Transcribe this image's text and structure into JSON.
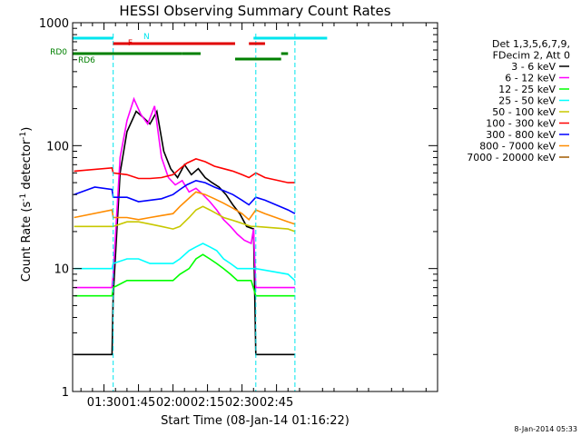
{
  "chart_data": {
    "type": "line",
    "title": "HESSI Observing Summary Count Rates",
    "xlabel": "Start Time (08-Jan-14 01:16:22)",
    "ylabel_main": "Count Rate (s",
    "ylabel_sup": "-1",
    "ylabel_mid": " detector",
    "ylabel_end": ")",
    "yscale": "log",
    "ylim": [
      1,
      1000
    ],
    "xlim_minutes": [
      16.37,
      175
    ],
    "x_ticks": [
      {
        "m": 30,
        "label": "01:30"
      },
      {
        "m": 45,
        "label": "01:45"
      },
      {
        "m": 60,
        "label": "02:00"
      },
      {
        "m": 75,
        "label": "02:15"
      },
      {
        "m": 90,
        "label": "02:30"
      },
      {
        "m": 105,
        "label": "02:45"
      }
    ],
    "y_ticks": [
      {
        "v": 1,
        "label": "1"
      },
      {
        "v": 10,
        "label": "10"
      },
      {
        "v": 100,
        "label": "100"
      },
      {
        "v": 1000,
        "label": "1000"
      }
    ],
    "legend": {
      "header": [
        "Det 1,3,5,6,7,9,",
        "FDecim 2, Att 0"
      ],
      "placement": "right"
    },
    "timestamp": "8-Jan-2014 05:33",
    "flag_labels": {
      "n": "N",
      "f": "F",
      "rd0": "RD0",
      "rd6": "RD6"
    },
    "flags": [
      {
        "name": "N",
        "color": "#00e5ee",
        "segments": [
          [
            16.4,
            34
          ],
          [
            95,
            127
          ]
        ]
      },
      {
        "name": "F",
        "color": "#e00000",
        "segments": [
          [
            34,
            87
          ],
          [
            93,
            100
          ]
        ]
      },
      {
        "name": "RD0",
        "color": "#008000",
        "segments": [
          [
            16.4,
            64
          ],
          [
            64,
            72
          ],
          [
            87,
            107
          ],
          [
            107,
            110
          ]
        ]
      }
    ],
    "saa_boundaries": [
      34,
      96,
      113
    ],
    "series": [
      {
        "name": "3 - 6 keV",
        "color": "#000000",
        "points": [
          [
            17,
            2
          ],
          [
            33.5,
            2
          ],
          [
            34,
            6
          ],
          [
            37,
            60
          ],
          [
            40,
            130
          ],
          [
            44,
            190
          ],
          [
            47,
            170
          ],
          [
            50,
            150
          ],
          [
            53,
            190
          ],
          [
            56,
            90
          ],
          [
            59,
            65
          ],
          [
            62,
            55
          ],
          [
            65,
            70
          ],
          [
            68,
            58
          ],
          [
            71,
            65
          ],
          [
            74,
            55
          ],
          [
            77,
            50
          ],
          [
            80,
            46
          ],
          [
            83,
            40
          ],
          [
            86,
            33
          ],
          [
            89,
            28
          ],
          [
            92,
            22
          ],
          [
            95,
            21
          ],
          [
            96,
            2
          ],
          [
            113,
            2
          ]
        ]
      },
      {
        "name": "6 - 12 keV",
        "color": "#ff00ff",
        "points": [
          [
            17,
            7
          ],
          [
            33.5,
            7
          ],
          [
            34,
            9
          ],
          [
            37,
            80
          ],
          [
            40,
            160
          ],
          [
            43,
            240
          ],
          [
            46,
            180
          ],
          [
            49,
            150
          ],
          [
            52,
            210
          ],
          [
            55,
            80
          ],
          [
            58,
            55
          ],
          [
            61,
            48
          ],
          [
            64,
            52
          ],
          [
            67,
            42
          ],
          [
            70,
            45
          ],
          [
            73,
            40
          ],
          [
            76,
            35
          ],
          [
            79,
            30
          ],
          [
            82,
            25
          ],
          [
            85,
            22
          ],
          [
            88,
            19
          ],
          [
            91,
            17
          ],
          [
            94,
            16
          ],
          [
            95,
            21
          ],
          [
            96,
            7
          ],
          [
            113,
            7
          ]
        ]
      },
      {
        "name": "12 - 25 keV",
        "color": "#00ff00",
        "points": [
          [
            17,
            6
          ],
          [
            33.5,
            6
          ],
          [
            34,
            7
          ],
          [
            40,
            8
          ],
          [
            45,
            8
          ],
          [
            50,
            8
          ],
          [
            55,
            8
          ],
          [
            60,
            8
          ],
          [
            63,
            9
          ],
          [
            67,
            10
          ],
          [
            70,
            12
          ],
          [
            73,
            13
          ],
          [
            76,
            12
          ],
          [
            79,
            11
          ],
          [
            82,
            10
          ],
          [
            85,
            9
          ],
          [
            88,
            8
          ],
          [
            91,
            8
          ],
          [
            94,
            8
          ],
          [
            96,
            6
          ],
          [
            113,
            6
          ]
        ]
      },
      {
        "name": "25 - 50 keV",
        "color": "#00ffff",
        "points": [
          [
            17,
            10
          ],
          [
            33.5,
            10
          ],
          [
            34,
            11
          ],
          [
            40,
            12
          ],
          [
            45,
            12
          ],
          [
            50,
            11
          ],
          [
            55,
            11
          ],
          [
            60,
            11
          ],
          [
            63,
            12
          ],
          [
            67,
            14
          ],
          [
            70,
            15
          ],
          [
            73,
            16
          ],
          [
            76,
            15
          ],
          [
            79,
            14
          ],
          [
            82,
            12
          ],
          [
            85,
            11
          ],
          [
            88,
            10
          ],
          [
            91,
            10
          ],
          [
            94,
            10
          ],
          [
            96,
            10
          ],
          [
            110,
            9
          ],
          [
            113,
            8
          ]
        ]
      },
      {
        "name": "50 - 100 keV",
        "color": "#c8c800",
        "points": [
          [
            17,
            22
          ],
          [
            33.5,
            22
          ],
          [
            34,
            22
          ],
          [
            40,
            24
          ],
          [
            45,
            24
          ],
          [
            50,
            23
          ],
          [
            55,
            22
          ],
          [
            60,
            21
          ],
          [
            63,
            22
          ],
          [
            67,
            26
          ],
          [
            70,
            30
          ],
          [
            73,
            32
          ],
          [
            76,
            30
          ],
          [
            79,
            28
          ],
          [
            82,
            26
          ],
          [
            85,
            25
          ],
          [
            88,
            24
          ],
          [
            91,
            23
          ],
          [
            94,
            22
          ],
          [
            96,
            22
          ],
          [
            110,
            21
          ],
          [
            113,
            20
          ]
        ]
      },
      {
        "name": "100 - 300 keV",
        "color": "#ff0000",
        "points": [
          [
            17,
            62
          ],
          [
            33.5,
            66
          ],
          [
            34,
            60
          ],
          [
            40,
            58
          ],
          [
            45,
            54
          ],
          [
            50,
            54
          ],
          [
            55,
            55
          ],
          [
            60,
            58
          ],
          [
            63,
            65
          ],
          [
            66,
            72
          ],
          [
            70,
            78
          ],
          [
            74,
            74
          ],
          [
            78,
            68
          ],
          [
            82,
            65
          ],
          [
            86,
            62
          ],
          [
            90,
            58
          ],
          [
            93,
            55
          ],
          [
            96,
            60
          ],
          [
            100,
            55
          ],
          [
            110,
            50
          ],
          [
            113,
            50
          ]
        ]
      },
      {
        "name": "300 - 800 keV",
        "color": "#0000ff",
        "points": [
          [
            17,
            40
          ],
          [
            26,
            46
          ],
          [
            33.5,
            44
          ],
          [
            34,
            38
          ],
          [
            40,
            38
          ],
          [
            45,
            35
          ],
          [
            50,
            36
          ],
          [
            55,
            37
          ],
          [
            60,
            40
          ],
          [
            63,
            44
          ],
          [
            66,
            48
          ],
          [
            70,
            52
          ],
          [
            74,
            50
          ],
          [
            78,
            46
          ],
          [
            82,
            43
          ],
          [
            86,
            40
          ],
          [
            90,
            36
          ],
          [
            93,
            33
          ],
          [
            96,
            38
          ],
          [
            100,
            36
          ],
          [
            110,
            30
          ],
          [
            113,
            28
          ]
        ]
      },
      {
        "name": "800 - 7000 keV",
        "color": "#ff8c00",
        "points": [
          [
            17,
            26
          ],
          [
            33.5,
            30
          ],
          [
            34,
            26
          ],
          [
            40,
            26
          ],
          [
            45,
            25
          ],
          [
            50,
            26
          ],
          [
            55,
            27
          ],
          [
            60,
            28
          ],
          [
            63,
            32
          ],
          [
            66,
            36
          ],
          [
            70,
            42
          ],
          [
            74,
            40
          ],
          [
            78,
            37
          ],
          [
            82,
            34
          ],
          [
            86,
            31
          ],
          [
            90,
            28
          ],
          [
            93,
            25
          ],
          [
            96,
            30
          ],
          [
            100,
            28
          ],
          [
            110,
            24
          ],
          [
            113,
            23
          ]
        ]
      },
      {
        "name": "7000 - 20000 keV",
        "color": "#a05a00",
        "points": []
      }
    ]
  }
}
